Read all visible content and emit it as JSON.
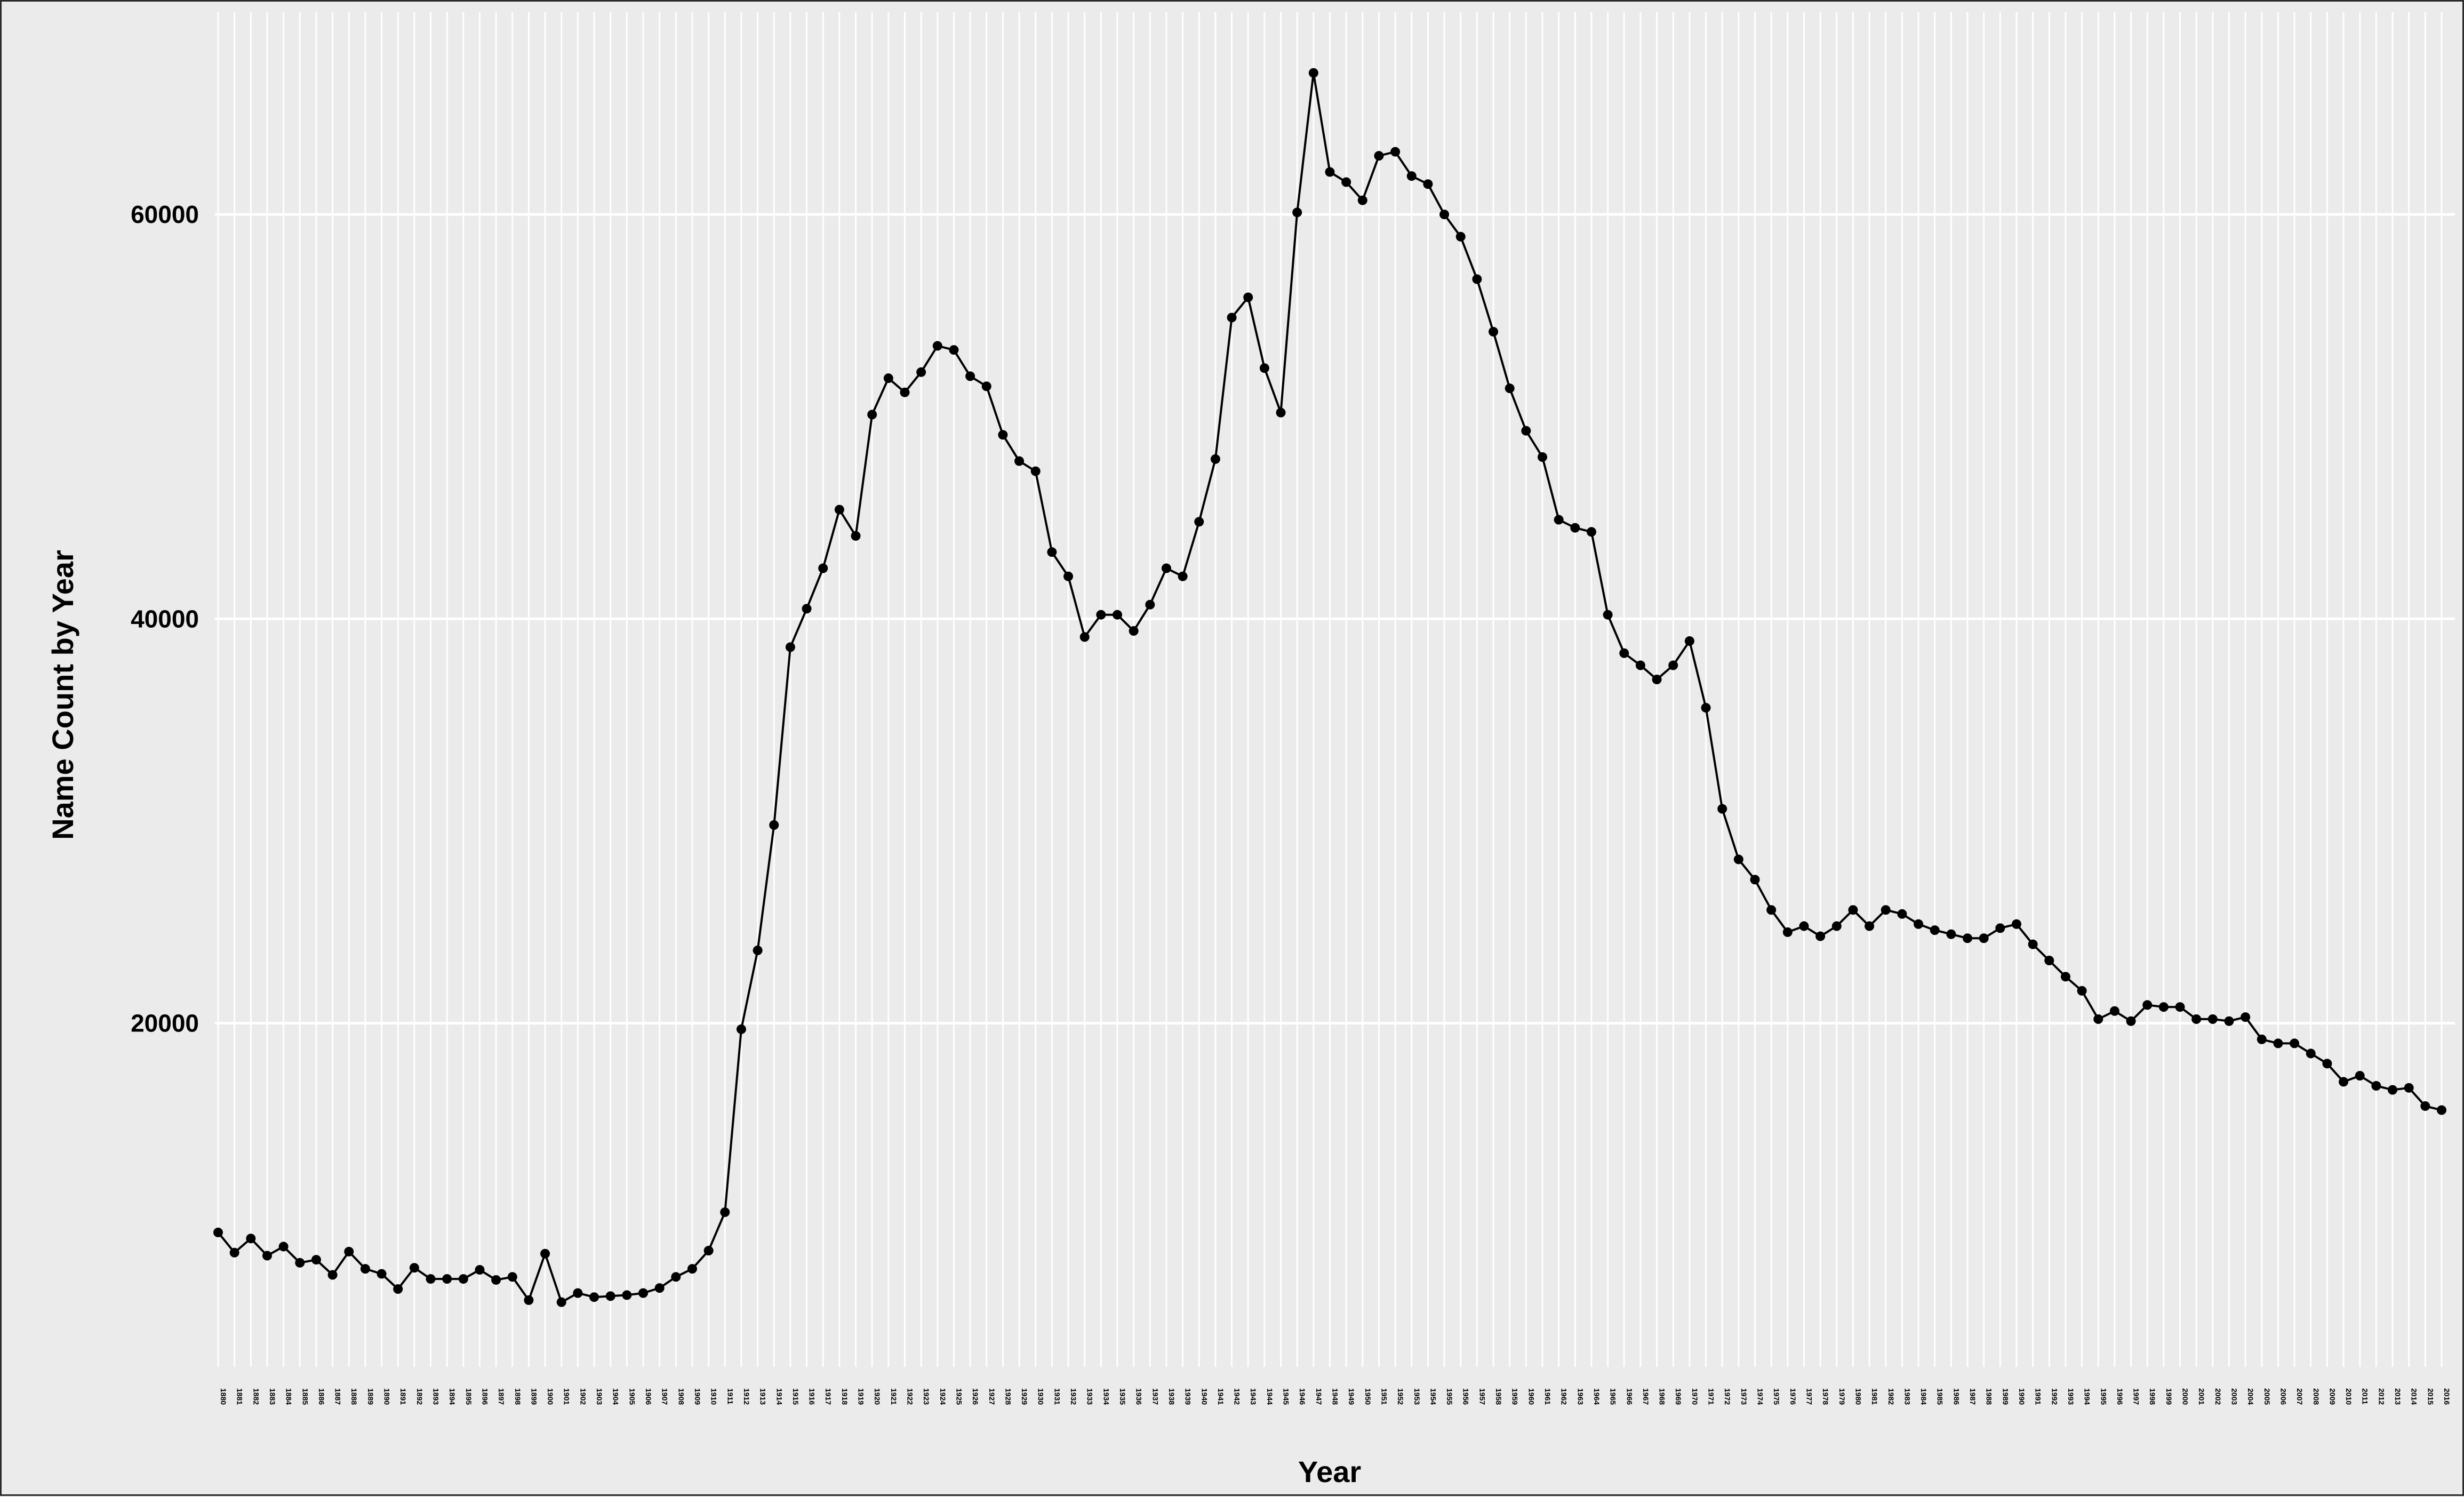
{
  "chart_data": {
    "type": "line",
    "title": "",
    "xlabel": "Year",
    "ylabel": "Name Count by Year",
    "x": [
      1880,
      1881,
      1882,
      1883,
      1884,
      1885,
      1886,
      1887,
      1888,
      1889,
      1890,
      1891,
      1892,
      1893,
      1894,
      1895,
      1896,
      1897,
      1898,
      1899,
      1900,
      1901,
      1902,
      1903,
      1904,
      1905,
      1906,
      1907,
      1908,
      1909,
      1910,
      1911,
      1912,
      1913,
      1914,
      1915,
      1916,
      1917,
      1918,
      1919,
      1920,
      1921,
      1922,
      1923,
      1924,
      1925,
      1926,
      1927,
      1928,
      1929,
      1930,
      1931,
      1932,
      1933,
      1934,
      1935,
      1936,
      1937,
      1938,
      1939,
      1940,
      1941,
      1942,
      1943,
      1944,
      1945,
      1946,
      1947,
      1948,
      1949,
      1950,
      1951,
      1952,
      1953,
      1954,
      1955,
      1956,
      1957,
      1958,
      1959,
      1960,
      1961,
      1962,
      1963,
      1964,
      1965,
      1966,
      1967,
      1968,
      1969,
      1970,
      1971,
      1972,
      1973,
      1974,
      1975,
      1976,
      1977,
      1978,
      1979,
      1980,
      1981,
      1982,
      1983,
      1984,
      1985,
      1986,
      1987,
      1988,
      1989,
      1990,
      1991,
      1992,
      1993,
      1994,
      1995,
      1996,
      1997,
      1998,
      1999,
      2000,
      2001,
      2002,
      2003,
      2004,
      2005,
      2006,
      2007,
      2008,
      2009,
      2010,
      2011,
      2012,
      2013,
      2014,
      2015,
      2016
    ],
    "y": [
      9650,
      8650,
      9350,
      8500,
      8950,
      8150,
      8300,
      7550,
      8700,
      7850,
      7600,
      6850,
      7900,
      7350,
      7350,
      7350,
      7800,
      7300,
      7450,
      6300,
      8600,
      6200,
      6650,
      6450,
      6500,
      6550,
      6650,
      6900,
      7450,
      7850,
      8750,
      10650,
      19700,
      23600,
      29800,
      38600,
      40500,
      42500,
      45400,
      44100,
      50100,
      51900,
      51200,
      52200,
      53500,
      53300,
      52000,
      51500,
      49100,
      47800,
      47300,
      43300,
      42100,
      39100,
      40200,
      40200,
      39400,
      40700,
      42500,
      42100,
      44800,
      47900,
      54900,
      55900,
      52400,
      50200,
      60100,
      67000,
      62100,
      61600,
      60700,
      62900,
      63100,
      61900,
      61500,
      60000,
      58900,
      56800,
      54200,
      51400,
      49300,
      48000,
      44900,
      44500,
      44300,
      40200,
      38300,
      37700,
      37000,
      37700,
      38900,
      35600,
      30600,
      28100,
      27100,
      25600,
      24500,
      24800,
      24300,
      24800,
      25600,
      24800,
      25600,
      25400,
      24900,
      24600,
      24400,
      24200,
      24200,
      24700,
      24900,
      23900,
      23100,
      22300,
      21600,
      20200,
      20600,
      20100,
      20900,
      20800,
      20800,
      20200,
      20200,
      20100,
      20300,
      19200,
      19000,
      19000,
      18500,
      18000,
      17100,
      17400,
      16900,
      16700,
      16800,
      15900,
      15700
    ],
    "yticks": [
      20000,
      40000,
      60000
    ],
    "ytick_labels": [
      "20000",
      "40000",
      "60000"
    ],
    "xlim": [
      1880,
      2016
    ],
    "ylim": [
      3000,
      70000
    ],
    "grid": true,
    "legend": "none",
    "colors": {
      "panel": "#ebebeb",
      "grid": "#ffffff",
      "line": "#000000",
      "text": "#000000",
      "frame": "#2a2a2a"
    }
  }
}
